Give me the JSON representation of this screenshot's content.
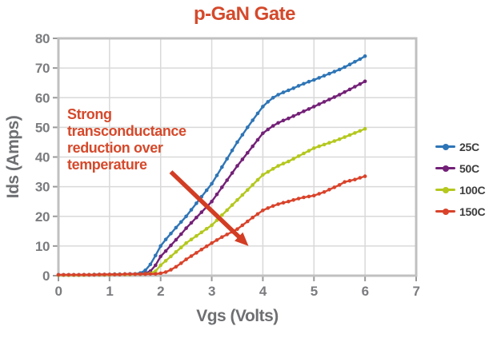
{
  "title": {
    "text": "p-GaN Gate",
    "color": "#d5492b"
  },
  "colors": {
    "accent_red": "#d5492b",
    "arrow_red": "#d23d24",
    "grid": "#d9d9d9",
    "plot_border": "#c0c0c0",
    "tick_mark": "#9a9a9a",
    "tick_label": "#7b7c7f",
    "axis_title": "#6e6f72",
    "legend_label": "#3c3c3c",
    "plot_background": "#ffffff"
  },
  "chart_data": {
    "type": "line",
    "title": "p-GaN Gate",
    "xlabel": "Vgs (Volts)",
    "ylabel": "Ids (Amps)",
    "xlim": [
      0,
      7
    ],
    "ylim": [
      0,
      80
    ],
    "xticks": [
      0,
      1,
      2,
      3,
      4,
      5,
      6,
      7
    ],
    "yticks": [
      0,
      10,
      20,
      30,
      40,
      50,
      60,
      70,
      80
    ],
    "grid": true,
    "legend_position": "right",
    "x_start": 0,
    "x_step": 0.1,
    "series": [
      {
        "name": "25C",
        "color": "#2e75b6",
        "values": [
          0.3,
          0.3,
          0.3,
          0.3,
          0.3,
          0.3,
          0.3,
          0.4,
          0.4,
          0.4,
          0.4,
          0.5,
          0.5,
          0.5,
          0.6,
          0.6,
          0.9,
          1.8,
          3.8,
          6.8,
          10,
          12.2,
          14.2,
          16.2,
          18.1,
          20,
          22.2,
          24.4,
          26.6,
          28.8,
          31,
          33.8,
          36.6,
          39.4,
          42.2,
          45,
          47.5,
          50,
          52.4,
          54.7,
          57,
          58.6,
          60,
          61,
          61.8,
          62.5,
          63.2,
          64,
          64.7,
          65.4,
          66,
          66.7,
          67.4,
          68.1,
          68.8,
          69.5,
          70.3,
          71.2,
          72.1,
          73,
          74
        ]
      },
      {
        "name": "50C",
        "color": "#732077",
        "values": [
          0.2,
          0.2,
          0.2,
          0.2,
          0.2,
          0.3,
          0.3,
          0.3,
          0.3,
          0.3,
          0.4,
          0.4,
          0.4,
          0.5,
          0.5,
          0.5,
          0.6,
          0.8,
          1.5,
          3.5,
          6.5,
          8.3,
          10.2,
          12.1,
          14,
          16,
          17.8,
          19.6,
          21.4,
          23.2,
          25,
          27.4,
          29.8,
          32.2,
          34.6,
          37,
          39.2,
          41.4,
          43.6,
          45.8,
          48,
          49.3,
          50.5,
          51.5,
          52.3,
          53,
          53.8,
          54.6,
          55.4,
          56.2,
          57,
          57.8,
          58.6,
          59.4,
          60.2,
          61,
          61.9,
          62.8,
          63.7,
          64.6,
          65.5
        ]
      },
      {
        "name": "100C",
        "color": "#b4c81e",
        "values": [
          0.2,
          0.2,
          0.2,
          0.2,
          0.2,
          0.2,
          0.3,
          0.3,
          0.3,
          0.3,
          0.3,
          0.4,
          0.4,
          0.4,
          0.4,
          0.5,
          0.5,
          0.6,
          0.8,
          1.5,
          3.5,
          5,
          6.5,
          8,
          9.5,
          11,
          12.2,
          13.4,
          14.6,
          15.8,
          17,
          18.7,
          20.4,
          22.1,
          23.8,
          25.5,
          27.2,
          28.9,
          30.6,
          32.3,
          34,
          35,
          36,
          37,
          37.8,
          38.5,
          39.4,
          40.3,
          41.2,
          42.1,
          43,
          43.6,
          44.2,
          44.8,
          45.4,
          46,
          46.7,
          47.4,
          48.1,
          48.8,
          49.5
        ]
      },
      {
        "name": "150C",
        "color": "#d9432b",
        "values": [
          0.3,
          0.3,
          0.3,
          0.3,
          0.3,
          0.3,
          0.3,
          0.3,
          0.4,
          0.4,
          0.4,
          0.4,
          0.4,
          0.5,
          0.5,
          0.5,
          0.5,
          0.5,
          0.6,
          0.6,
          0.8,
          1.2,
          2,
          3,
          4.2,
          5.5,
          6.6,
          7.7,
          8.8,
          9.9,
          11,
          12,
          13,
          13.9,
          14.8,
          15.7,
          17,
          18.3,
          19.6,
          20.8,
          22,
          22.8,
          23.5,
          24.1,
          24.6,
          25,
          25.5,
          26,
          26.4,
          26.7,
          27,
          27.6,
          28.2,
          29,
          29.8,
          30.6,
          31.6,
          32,
          32.4,
          33,
          33.5
        ]
      }
    ],
    "annotation": {
      "text": "Strong\ntransconductance\nreduction over\ntemperature",
      "arrow_from": [
        2.2,
        35
      ],
      "arrow_to": [
        3.72,
        10
      ]
    }
  },
  "legend": {
    "items": [
      {
        "label": "25C",
        "color": "#2e75b6"
      },
      {
        "label": "50C",
        "color": "#732077"
      },
      {
        "label": "100C",
        "color": "#b4c81e"
      },
      {
        "label": "150C",
        "color": "#d9432b"
      }
    ]
  }
}
